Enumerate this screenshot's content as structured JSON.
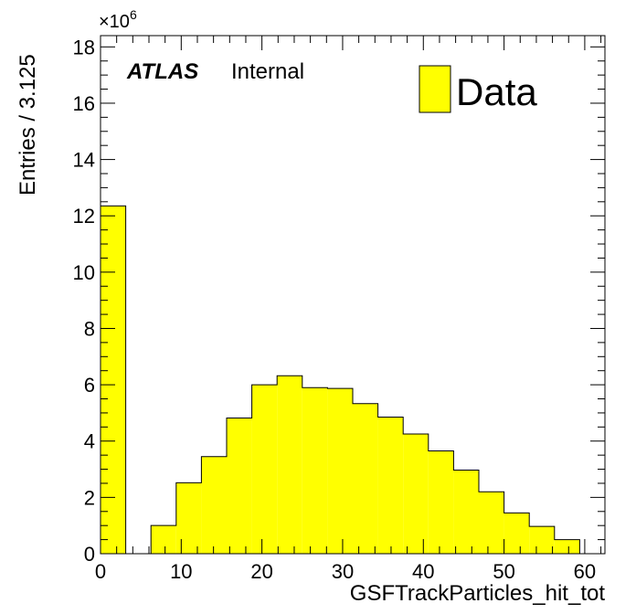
{
  "chart_data": {
    "type": "bar",
    "subtype": "histogram",
    "xlabel": "GSFTrackParticles_hit_tot",
    "ylabel": "Entries / 3.125",
    "y_multiplier": {
      "base": "×10",
      "exponent": "6"
    },
    "xlim": [
      0,
      62.5
    ],
    "ylim": [
      0,
      18.4
    ],
    "bin_width": 3.125,
    "bin_edges": [
      0,
      3.125,
      6.25,
      9.375,
      12.5,
      15.625,
      18.75,
      21.875,
      25,
      28.125,
      31.25,
      34.375,
      37.5,
      40.625,
      43.75,
      46.875,
      50,
      53.125,
      56.25,
      59.375,
      62.5
    ],
    "series": [
      {
        "name": "Data",
        "color": "#ffff00",
        "values": [
          12.35,
          0,
          1.0,
          2.52,
          3.45,
          4.82,
          6.0,
          6.32,
          5.9,
          5.87,
          5.33,
          4.85,
          4.25,
          3.65,
          2.97,
          2.2,
          1.45,
          0.97,
          0.5,
          0
        ]
      }
    ],
    "x_ticks": [
      0,
      10,
      20,
      30,
      40,
      50,
      60
    ],
    "y_ticks": [
      0,
      2,
      4,
      6,
      8,
      10,
      12,
      14,
      16,
      18
    ],
    "legend": {
      "position": "top-right",
      "entries": [
        "Data"
      ]
    },
    "grid": false
  },
  "annotations": {
    "atlas": "ATLAS",
    "label": "Internal"
  }
}
